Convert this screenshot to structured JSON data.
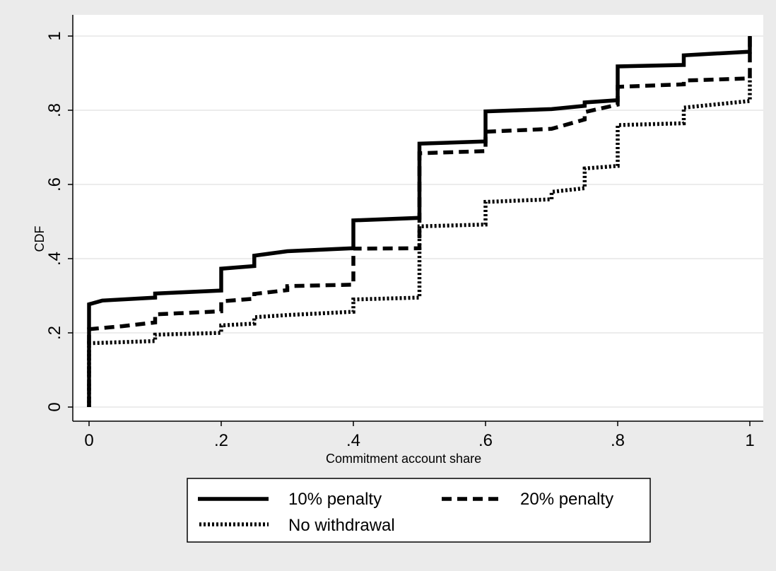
{
  "chart_data": {
    "type": "line",
    "title": "",
    "xlabel": "Commitment account share",
    "ylabel": "CDF",
    "xlim": [
      0,
      1
    ],
    "ylim": [
      0,
      1
    ],
    "xticks": [
      {
        "value": 0,
        "label": "0"
      },
      {
        "value": 0.2,
        "label": ".2"
      },
      {
        "value": 0.4,
        "label": ".4"
      },
      {
        "value": 0.6,
        "label": ".6"
      },
      {
        "value": 0.8,
        "label": ".8"
      },
      {
        "value": 1,
        "label": "1"
      }
    ],
    "yticks": [
      {
        "value": 0,
        "label": "0"
      },
      {
        "value": 0.2,
        "label": ".2"
      },
      {
        "value": 0.4,
        "label": ".4"
      },
      {
        "value": 0.6,
        "label": ".6"
      },
      {
        "value": 0.8,
        "label": ".8"
      },
      {
        "value": 1,
        "label": "1"
      }
    ],
    "grid": "horizontal",
    "legend_position": "bottom",
    "series": [
      {
        "name": "10% penalty",
        "style": "solid",
        "color": "#000000",
        "points": [
          [
            0,
            0
          ],
          [
            0,
            0.277
          ],
          [
            0.02,
            0.287
          ],
          [
            0.1,
            0.295
          ],
          [
            0.1,
            0.306
          ],
          [
            0.2,
            0.314
          ],
          [
            0.2,
            0.373
          ],
          [
            0.25,
            0.38
          ],
          [
            0.25,
            0.408
          ],
          [
            0.3,
            0.42
          ],
          [
            0.4,
            0.428
          ],
          [
            0.4,
            0.503
          ],
          [
            0.5,
            0.51
          ],
          [
            0.5,
            0.71
          ],
          [
            0.6,
            0.716
          ],
          [
            0.6,
            0.797
          ],
          [
            0.7,
            0.803
          ],
          [
            0.75,
            0.812
          ],
          [
            0.75,
            0.821
          ],
          [
            0.8,
            0.827
          ],
          [
            0.8,
            0.918
          ],
          [
            0.9,
            0.922
          ],
          [
            0.9,
            0.948
          ],
          [
            1,
            0.958
          ],
          [
            1,
            1
          ]
        ]
      },
      {
        "name": "20% penalty",
        "style": "dashed",
        "color": "#000000",
        "points": [
          [
            0,
            0
          ],
          [
            0,
            0.21
          ],
          [
            0.05,
            0.218
          ],
          [
            0.1,
            0.228
          ],
          [
            0.1,
            0.25
          ],
          [
            0.2,
            0.258
          ],
          [
            0.2,
            0.285
          ],
          [
            0.25,
            0.292
          ],
          [
            0.25,
            0.305
          ],
          [
            0.3,
            0.315
          ],
          [
            0.3,
            0.326
          ],
          [
            0.4,
            0.33
          ],
          [
            0.4,
            0.427
          ],
          [
            0.5,
            0.428
          ],
          [
            0.5,
            0.684
          ],
          [
            0.6,
            0.69
          ],
          [
            0.6,
            0.742
          ],
          [
            0.7,
            0.75
          ],
          [
            0.75,
            0.775
          ],
          [
            0.75,
            0.795
          ],
          [
            0.8,
            0.815
          ],
          [
            0.8,
            0.863
          ],
          [
            0.9,
            0.87
          ],
          [
            0.9,
            0.88
          ],
          [
            1,
            0.886
          ],
          [
            1,
            1
          ]
        ]
      },
      {
        "name": "No withdrawal",
        "style": "dotted",
        "color": "#000000",
        "points": [
          [
            0,
            0
          ],
          [
            0,
            0.172
          ],
          [
            0.1,
            0.178
          ],
          [
            0.1,
            0.195
          ],
          [
            0.2,
            0.2
          ],
          [
            0.2,
            0.22
          ],
          [
            0.25,
            0.225
          ],
          [
            0.25,
            0.242
          ],
          [
            0.3,
            0.248
          ],
          [
            0.4,
            0.257
          ],
          [
            0.4,
            0.29
          ],
          [
            0.5,
            0.295
          ],
          [
            0.5,
            0.487
          ],
          [
            0.6,
            0.492
          ],
          [
            0.6,
            0.553
          ],
          [
            0.7,
            0.56
          ],
          [
            0.7,
            0.58
          ],
          [
            0.75,
            0.59
          ],
          [
            0.75,
            0.643
          ],
          [
            0.8,
            0.65
          ],
          [
            0.8,
            0.76
          ],
          [
            0.9,
            0.765
          ],
          [
            0.9,
            0.807
          ],
          [
            1,
            0.825
          ],
          [
            1,
            0.89
          ]
        ]
      }
    ]
  }
}
